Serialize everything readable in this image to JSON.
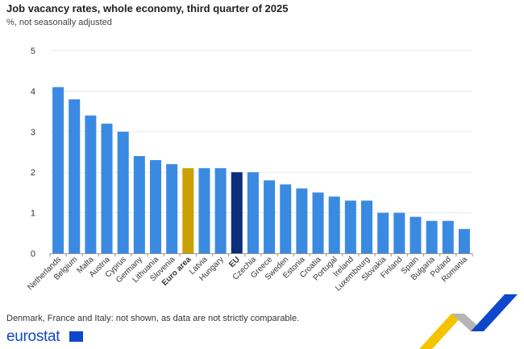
{
  "title": "Job vacancy rates, whole economy, third quarter of 2025",
  "subtitle": "%, not seasonally adjusted",
  "note": "Denmark, France and Italy: not shown, as data are not strictly comparable.",
  "logo_text": "eurostat",
  "colors": {
    "default": "#3a8ae2",
    "euro_area": "#c9a100",
    "eu": "#0b2d7a",
    "grid": "#e6eaf2"
  },
  "chart_data": {
    "type": "bar",
    "title": "Job vacancy rates, whole economy, third quarter of 2025",
    "subtitle": "%, not seasonally adjusted",
    "ylim": [
      0,
      5
    ],
    "yticks": [
      0,
      1,
      2,
      3,
      4,
      5
    ],
    "grid": true,
    "categories": [
      "Netherlands",
      "Belgium",
      "Malta",
      "Austria",
      "Cyprus",
      "Germany",
      "Lithuania",
      "Slovenia",
      "Euro area",
      "Latvia",
      "Hungary",
      "EU",
      "Czechia",
      "Greece",
      "Sweden",
      "Estonia",
      "Croatia",
      "Portugal",
      "Ireland",
      "Luxembourg",
      "Slovakia",
      "Finland",
      "Spain",
      "Bulgaria",
      "Poland",
      "Romania"
    ],
    "values": [
      4.1,
      3.8,
      3.4,
      3.2,
      3.0,
      2.4,
      2.3,
      2.2,
      2.1,
      2.1,
      2.1,
      2.0,
      2.0,
      1.8,
      1.7,
      1.6,
      1.5,
      1.4,
      1.3,
      1.3,
      1.0,
      1.0,
      0.9,
      0.8,
      0.8,
      0.6
    ],
    "highlight": {
      "Euro area": "#c9a100",
      "EU": "#0b2d7a"
    },
    "bold_labels": [
      "Euro area",
      "EU"
    ]
  }
}
